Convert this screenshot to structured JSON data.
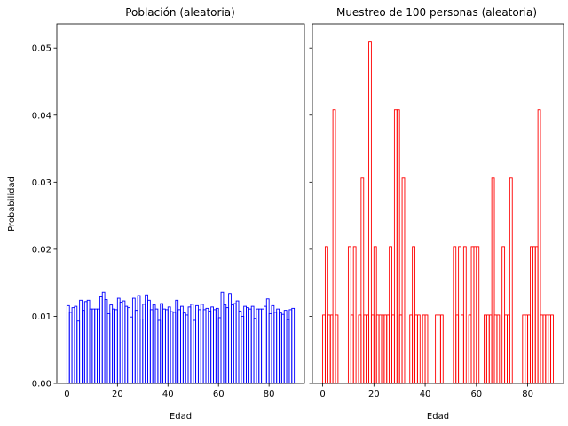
{
  "chart_data": [
    {
      "type": "bar",
      "title": "Población (aleatoria)",
      "xlabel": "Edad",
      "ylabel": "Probabilidad",
      "xlim": [
        -4,
        94
      ],
      "ylim": [
        0,
        0.0536
      ],
      "xticks": [
        0,
        20,
        40,
        60,
        80
      ],
      "yticks": [
        0.0,
        0.01,
        0.02,
        0.03,
        0.04,
        0.05
      ],
      "bin_start": 0,
      "bin_width": 1,
      "color": "#0000ff",
      "values": [
        0.0116,
        0.0106,
        0.0113,
        0.0115,
        0.0093,
        0.0124,
        0.0109,
        0.0122,
        0.0124,
        0.0111,
        0.0111,
        0.0111,
        0.0111,
        0.0129,
        0.0136,
        0.0125,
        0.0104,
        0.0117,
        0.0111,
        0.011,
        0.0127,
        0.0121,
        0.0123,
        0.0115,
        0.0113,
        0.0099,
        0.0127,
        0.0109,
        0.0131,
        0.0096,
        0.0118,
        0.0132,
        0.0124,
        0.011,
        0.0117,
        0.0111,
        0.0094,
        0.0119,
        0.0111,
        0.011,
        0.0114,
        0.0107,
        0.0106,
        0.0124,
        0.011,
        0.0115,
        0.0105,
        0.0102,
        0.0114,
        0.0118,
        0.0094,
        0.0116,
        0.011,
        0.0118,
        0.011,
        0.0112,
        0.0108,
        0.0114,
        0.011,
        0.0112,
        0.0098,
        0.0136,
        0.0117,
        0.0113,
        0.0134,
        0.0117,
        0.0119,
        0.0123,
        0.0108,
        0.01,
        0.0115,
        0.0113,
        0.0111,
        0.0115,
        0.0097,
        0.0111,
        0.0111,
        0.0111,
        0.0115,
        0.0126,
        0.0104,
        0.0116,
        0.0106,
        0.0111,
        0.0105,
        0.0103,
        0.0109,
        0.0095,
        0.011,
        0.0112
      ]
    },
    {
      "type": "bar",
      "title": "Muestreo de 100 personas (aleatoria)",
      "xlabel": "Edad",
      "ylabel": "",
      "xlim": [
        -4,
        94
      ],
      "ylim": [
        0,
        0.0536
      ],
      "xticks": [
        0,
        20,
        40,
        60,
        80
      ],
      "yticks": [
        0.0,
        0.01,
        0.02,
        0.03,
        0.04,
        0.05
      ],
      "bin_start": 0,
      "bin_width": 1,
      "color": "#ff0000",
      "values": [
        0.0102,
        0.0204,
        0.0102,
        0.0102,
        0.0408,
        0.0102,
        0,
        0,
        0,
        0,
        0.0204,
        0.0102,
        0.0204,
        0,
        0.0102,
        0.0306,
        0.0102,
        0.0102,
        0.051,
        0.0102,
        0.0204,
        0.0102,
        0.0102,
        0.0102,
        0.0102,
        0.0102,
        0.0204,
        0.0102,
        0.0408,
        0.0408,
        0.0102,
        0.0306,
        0,
        0,
        0.0102,
        0.0204,
        0.0102,
        0.0102,
        0,
        0.0102,
        0.0102,
        0,
        0,
        0,
        0.0102,
        0.0102,
        0.0102,
        0,
        0,
        0,
        0,
        0.0204,
        0.0102,
        0.0204,
        0.0102,
        0.0204,
        0,
        0.0102,
        0.0204,
        0.0204,
        0.0204,
        0,
        0,
        0.0102,
        0.0102,
        0.0102,
        0.0306,
        0.0102,
        0.0102,
        0,
        0.0204,
        0.0102,
        0.0102,
        0.0306,
        0,
        0,
        0,
        0,
        0.0102,
        0.0102,
        0.0102,
        0.0204,
        0.0204,
        0.0204,
        0.0408,
        0.0102,
        0.0102,
        0.0102,
        0.0102,
        0.0102
      ]
    }
  ]
}
